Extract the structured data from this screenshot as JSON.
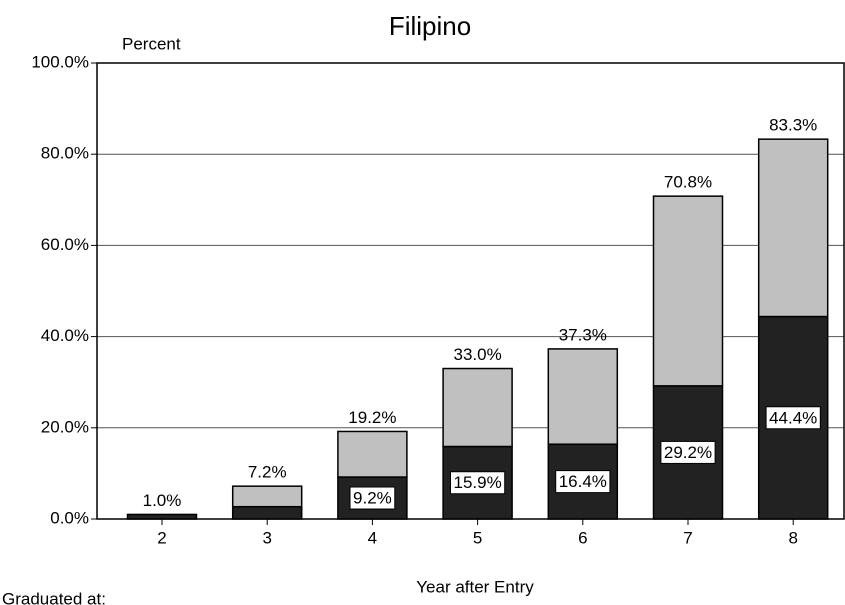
{
  "chart_data": {
    "type": "stacked_bar",
    "title": "Filipino",
    "y_label": "Percent",
    "x_label": "Year after Entry",
    "legend_title": "Graduated at:",
    "categories": [
      "2",
      "3",
      "4",
      "5",
      "6",
      "7",
      "8"
    ],
    "series": [
      {
        "color": "#222222",
        "values": [
          1.0,
          2.7,
          9.2,
          15.9,
          16.4,
          29.2,
          44.4
        ],
        "value_labels": [
          null,
          null,
          "9.2%",
          "15.9%",
          "16.4%",
          "29.2%",
          "44.4%"
        ]
      },
      {
        "color": "#c0c0c0",
        "values": [
          0,
          4.5,
          10.0,
          17.1,
          20.9,
          41.6,
          38.9
        ]
      }
    ],
    "total_labels": [
      "1.0%",
      "7.2%",
      "19.2%",
      "33.0%",
      "37.3%",
      "70.8%",
      "83.3%"
    ],
    "ylim": [
      0,
      100
    ],
    "yticks": [
      {
        "value": 0,
        "label": "0.0%"
      },
      {
        "value": 20,
        "label": "20.0%"
      },
      {
        "value": 40,
        "label": "40.0%"
      },
      {
        "value": 60,
        "label": "60.0%"
      },
      {
        "value": 80,
        "label": "80.0%"
      },
      {
        "value": 100,
        "label": "100.0%"
      }
    ],
    "grid": true
  }
}
